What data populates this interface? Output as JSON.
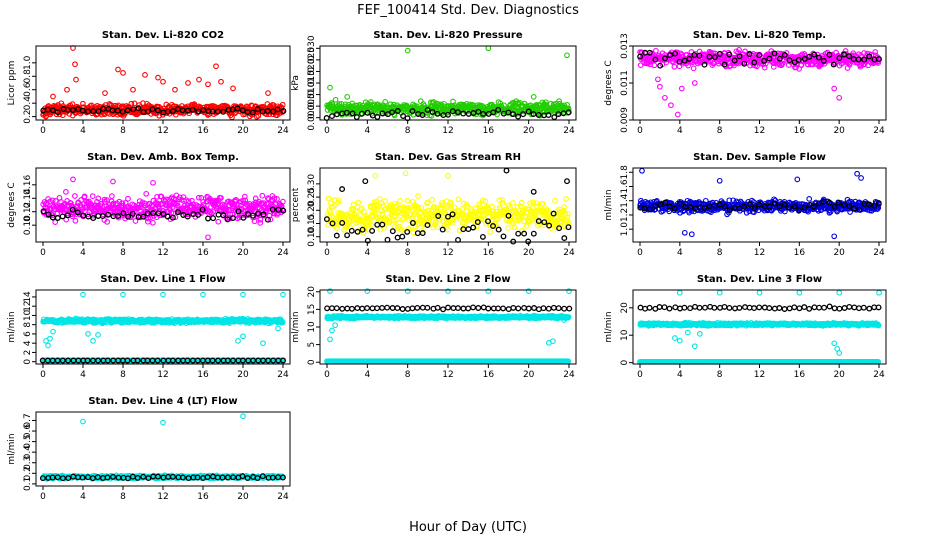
{
  "figure": {
    "title": "FEF_100414  Std. Dev. Diagnostics",
    "xlabel": "Hour of Day (UTC)"
  },
  "chart_data": [
    {
      "type": "scatter",
      "title": "Stan. Dev. Li-820 CO2",
      "ylabel": "Licor ppm",
      "xlim": [
        0,
        24
      ],
      "ylim": [
        0.15,
        1.25
      ],
      "xticks": [
        "0",
        "4",
        "8",
        "12",
        "16",
        "20",
        "24"
      ],
      "yticks": [
        0.2,
        0.4,
        0.6,
        0.8,
        1.0
      ],
      "yticklabels": [
        "0.2",
        "0.4",
        "0.6",
        "0.8",
        "1.0"
      ],
      "colors": {
        "series": "#ff0000",
        "reference": "#000000"
      },
      "series": [
        {
          "role": "all",
          "pattern": {
            "base": 0.3,
            "spread": 0.12,
            "outliers": [
              [
                3.0,
                1.22
              ],
              [
                3.2,
                0.98
              ],
              [
                3.3,
                0.75
              ],
              [
                7.5,
                0.9
              ],
              [
                8.0,
                0.85
              ],
              [
                10.2,
                0.82
              ],
              [
                11.5,
                0.78
              ],
              [
                12.0,
                0.72
              ],
              [
                14.5,
                0.7
              ],
              [
                15.6,
                0.75
              ],
              [
                16.5,
                0.68
              ],
              [
                17.3,
                0.95
              ],
              [
                17.8,
                0.72
              ],
              [
                2.4,
                0.6
              ],
              [
                6.2,
                0.55
              ],
              [
                9.0,
                0.6
              ],
              [
                13.2,
                0.6
              ],
              [
                19.0,
                0.62
              ],
              [
                22.5,
                0.55
              ],
              [
                1.0,
                0.5
              ]
            ]
          }
        },
        {
          "role": "reference",
          "pattern": {
            "base": 0.29,
            "spread": 0.04
          }
        }
      ]
    },
    {
      "type": "scatter",
      "title": "Stan. Dev. Li-820 Pressure",
      "ylabel": "kPa",
      "xlim": [
        0,
        24
      ],
      "ylim": [
        -0.001,
        0.031
      ],
      "xticks": [
        "0",
        "4",
        "8",
        "12",
        "16",
        "20",
        "24"
      ],
      "yticks": [
        0.0,
        0.005,
        0.01,
        0.015,
        0.02,
        0.025,
        0.03
      ],
      "yticklabels": [
        "0.000",
        "0.005",
        "0.010",
        "0.015",
        "0.020",
        "0.025",
        "0.030"
      ],
      "colors": {
        "series": "#22cc00",
        "reference": "#000000"
      },
      "series": [
        {
          "role": "all",
          "pattern": {
            "base": 0.004,
            "spread": 0.004,
            "outliers": [
              [
                0.3,
                0.013
              ],
              [
                8.0,
                0.029
              ],
              [
                16.0,
                0.03
              ],
              [
                23.8,
                0.027
              ],
              [
                2.0,
                0.009
              ],
              [
                20.5,
                0.009
              ]
            ]
          }
        },
        {
          "role": "reference",
          "pattern": {
            "base": 0.0015,
            "spread": 0.002
          }
        }
      ]
    },
    {
      "type": "scatter",
      "title": "Stan. Dev. Li-820 Temp.",
      "ylabel": "degrees C",
      "xlim": [
        0,
        24
      ],
      "ylim": [
        0.009,
        0.013
      ],
      "xticks": [
        "0",
        "4",
        "8",
        "12",
        "16",
        "20",
        "24"
      ],
      "yticks": [
        0.009,
        0.011,
        0.013
      ],
      "yticklabels": [
        "0.009",
        "0.011",
        "0.013"
      ],
      "colors": {
        "series": "#ff00ff",
        "reference": "#000000"
      },
      "series": [
        {
          "role": "all",
          "pattern": {
            "base": 0.0123,
            "spread": 0.0006,
            "outliers": [
              [
                2.5,
                0.0102
              ],
              [
                3.1,
                0.0098
              ],
              [
                3.8,
                0.0093
              ],
              [
                4.2,
                0.0107
              ],
              [
                2.0,
                0.0108
              ],
              [
                5.5,
                0.011
              ],
              [
                20.0,
                0.0102
              ],
              [
                19.5,
                0.0107
              ],
              [
                1.8,
                0.0112
              ]
            ]
          }
        },
        {
          "role": "reference",
          "pattern": {
            "base": 0.0123,
            "spread": 0.0004
          }
        }
      ]
    },
    {
      "type": "scatter",
      "title": "Stan. Dev. Amb. Box Temp.",
      "ylabel": "degrees C",
      "xlim": [
        0,
        24
      ],
      "ylim": [
        0.075,
        0.185
      ],
      "xticks": [
        "0",
        "4",
        "8",
        "12",
        "16",
        "20",
        "24"
      ],
      "yticks": [
        0.1,
        0.12,
        0.14,
        0.16
      ],
      "yticklabels": [
        "0.10",
        "0.12",
        "0.14",
        "0.16"
      ],
      "colors": {
        "series": "#ff00ff",
        "reference": "#000000"
      },
      "series": [
        {
          "role": "all",
          "pattern": {
            "base": 0.125,
            "spread": 0.025,
            "outliers": [
              [
                16.5,
                0.082
              ],
              [
                3.0,
                0.168
              ],
              [
                7.0,
                0.165
              ],
              [
                11.0,
                0.163
              ]
            ]
          }
        },
        {
          "role": "reference",
          "pattern": {
            "base": 0.115,
            "spread": 0.012
          }
        }
      ]
    },
    {
      "type": "scatter",
      "title": "Stan. Dev. Gas Stream RH",
      "ylabel": "percent",
      "xlim": [
        0,
        24
      ],
      "ylim": [
        0.08,
        0.36
      ],
      "xticks": [
        "0",
        "4",
        "8",
        "12",
        "16",
        "20",
        "24"
      ],
      "yticks": [
        0.1,
        0.15,
        0.2,
        0.25,
        0.3
      ],
      "yticklabels": [
        "0.10",
        "0.15",
        "0.20",
        "0.25",
        "0.30"
      ],
      "colors": {
        "series": "#ffff00",
        "reference": "#000000"
      },
      "series": [
        {
          "role": "all",
          "pattern": {
            "base": 0.18,
            "spread": 0.08,
            "outliers": [
              [
                7.8,
                0.34
              ],
              [
                12.0,
                0.33
              ],
              [
                4.8,
                0.33
              ]
            ]
          }
        },
        {
          "role": "reference",
          "pattern": {
            "base": 0.13,
            "spread": 0.06,
            "outliers": [
              [
                3.8,
                0.31
              ],
              [
                17.8,
                0.35
              ],
              [
                23.8,
                0.31
              ],
              [
                1.5,
                0.28
              ],
              [
                20.5,
                0.27
              ]
            ]
          }
        }
      ]
    },
    {
      "type": "scatter",
      "title": "Stan. Dev. Sample Flow",
      "ylabel": "ml/min",
      "xlim": [
        0,
        24
      ],
      "ylim": [
        0.82,
        1.86
      ],
      "xticks": [
        "0",
        "4",
        "8",
        "12",
        "16",
        "20",
        "24"
      ],
      "yticks": [
        1.0,
        1.2,
        1.4,
        1.6,
        1.8
      ],
      "yticklabels": [
        "1.0",
        "1.2",
        "1.4",
        "1.6",
        "1.8"
      ],
      "colors": {
        "series": "#0000dd",
        "reference": "#000000"
      },
      "series": [
        {
          "role": "all",
          "pattern": {
            "base": 1.32,
            "spread": 0.12,
            "outliers": [
              [
                0.2,
                1.82
              ],
              [
                21.8,
                1.78
              ],
              [
                22.2,
                1.72
              ],
              [
                19.5,
                0.9
              ],
              [
                4.5,
                0.95
              ],
              [
                5.2,
                0.93
              ],
              [
                15.8,
                1.7
              ],
              [
                8.0,
                1.68
              ]
            ]
          }
        },
        {
          "role": "reference",
          "pattern": {
            "base": 1.32,
            "spread": 0.07
          }
        }
      ]
    },
    {
      "type": "scatter",
      "title": "Stan. Dev. Line 1 Flow",
      "ylabel": "ml/min",
      "xlim": [
        0,
        24
      ],
      "ylim": [
        -0.5,
        15.5
      ],
      "xticks": [
        "0",
        "4",
        "8",
        "12",
        "16",
        "20",
        "24"
      ],
      "yticks": [
        0,
        2,
        4,
        6,
        8,
        10,
        12,
        14
      ],
      "yticklabels": [
        "0",
        "2",
        "4",
        "6",
        "8",
        "10",
        "12",
        "14"
      ],
      "colors": {
        "series": "#00e5e5",
        "reference": "#000000"
      },
      "series": [
        {
          "role": "line",
          "pattern": {
            "base": 8.8,
            "spread": 0.6,
            "outliers": [
              [
                0.3,
                4.5
              ],
              [
                0.5,
                3.5
              ],
              [
                0.7,
                5.0
              ],
              [
                1.0,
                6.5
              ],
              [
                4.5,
                6.0
              ],
              [
                5.0,
                4.5
              ],
              [
                5.5,
                5.8
              ],
              [
                19.5,
                4.5
              ],
              [
                20.0,
                5.5
              ],
              [
                22.0,
                4.0
              ],
              [
                23.5,
                7.2
              ]
            ]
          }
        },
        {
          "role": "top",
          "pattern": {
            "xs": [
              4,
              8,
              12,
              16,
              20,
              24
            ],
            "y": 14.5
          }
        },
        {
          "role": "baseline",
          "pattern": {
            "base": 0.25,
            "spread": 0.0
          }
        },
        {
          "role": "reference",
          "pattern": {
            "base": 0.25,
            "spread": 0.0
          }
        }
      ]
    },
    {
      "type": "scatter",
      "title": "Stan. Dev. Line 2 Flow",
      "ylabel": "ml/min",
      "xlim": [
        0,
        24
      ],
      "ylim": [
        -0.5,
        20.5
      ],
      "xticks": [
        "0",
        "4",
        "8",
        "12",
        "16",
        "20",
        "24"
      ],
      "yticks": [
        0,
        5,
        10,
        15,
        20
      ],
      "yticklabels": [
        "0",
        "5",
        "10",
        "15",
        "20"
      ],
      "colors": {
        "series": "#00e5e5",
        "reference": "#000000"
      },
      "series": [
        {
          "role": "line",
          "pattern": {
            "base": 12.8,
            "spread": 0.5,
            "outliers": [
              [
                0.3,
                6.5
              ],
              [
                0.5,
                9.0
              ],
              [
                0.8,
                10.5
              ],
              [
                22.0,
                5.5
              ],
              [
                22.4,
                6.0
              ],
              [
                23.5,
                12.0
              ]
            ]
          }
        },
        {
          "role": "top",
          "pattern": {
            "xs": [
              0.3,
              4,
              8,
              12,
              16,
              20,
              24
            ],
            "y": 20.2
          }
        },
        {
          "role": "baseline",
          "pattern": {
            "base": 0.3,
            "spread": 0.0
          }
        },
        {
          "role": "reference",
          "pattern": {
            "base": 15.3,
            "spread": 0.3
          }
        }
      ]
    },
    {
      "type": "scatter",
      "title": "Stan. Dev. Line 3 Flow",
      "ylabel": "ml/min",
      "xlim": [
        0,
        24
      ],
      "ylim": [
        -0.5,
        26.5
      ],
      "xticks": [
        "0",
        "4",
        "8",
        "12",
        "16",
        "20",
        "24"
      ],
      "yticks": [
        0,
        10,
        20
      ],
      "yticklabels": [
        "0",
        "10",
        "20"
      ],
      "colors": {
        "series": "#00e5e5",
        "reference": "#000000"
      },
      "series": [
        {
          "role": "line",
          "pattern": {
            "base": 14.0,
            "spread": 0.7,
            "outliers": [
              [
                3.5,
                9.0
              ],
              [
                4.0,
                8.0
              ],
              [
                4.8,
                11.0
              ],
              [
                5.5,
                6.0
              ],
              [
                19.5,
                7.0
              ],
              [
                19.8,
                5.0
              ],
              [
                20.0,
                3.5
              ],
              [
                6.0,
                10.5
              ]
            ]
          }
        },
        {
          "role": "top",
          "pattern": {
            "xs": [
              4,
              8,
              12,
              16,
              20,
              24
            ],
            "y": 25.5
          }
        },
        {
          "role": "baseline",
          "pattern": {
            "base": 0.3,
            "spread": 0.0
          }
        },
        {
          "role": "reference",
          "pattern": {
            "base": 20.0,
            "spread": 0.5
          }
        }
      ]
    },
    {
      "type": "scatter",
      "title": "Stan. Dev. Line 4 (LT) Flow",
      "ylabel": "ml/min",
      "xlim": [
        0,
        24
      ],
      "ylim": [
        0.08,
        0.78
      ],
      "xticks": [
        "0",
        "4",
        "8",
        "12",
        "16",
        "20",
        "24"
      ],
      "yticks": [
        0.1,
        0.2,
        0.3,
        0.4,
        0.5,
        0.6,
        0.7
      ],
      "yticklabels": [
        "0.1",
        "0.2",
        "0.3",
        "0.4",
        "0.5",
        "0.6",
        "0.7"
      ],
      "colors": {
        "series": "#00e5e5",
        "reference": "#000000"
      },
      "series": [
        {
          "role": "all",
          "pattern": {
            "base": 0.165,
            "spread": 0.02,
            "outliers": [
              [
                4.0,
                0.69
              ],
              [
                12.0,
                0.68
              ],
              [
                20.0,
                0.74
              ]
            ]
          }
        },
        {
          "role": "reference",
          "pattern": {
            "base": 0.162,
            "spread": 0.012
          }
        }
      ]
    }
  ]
}
